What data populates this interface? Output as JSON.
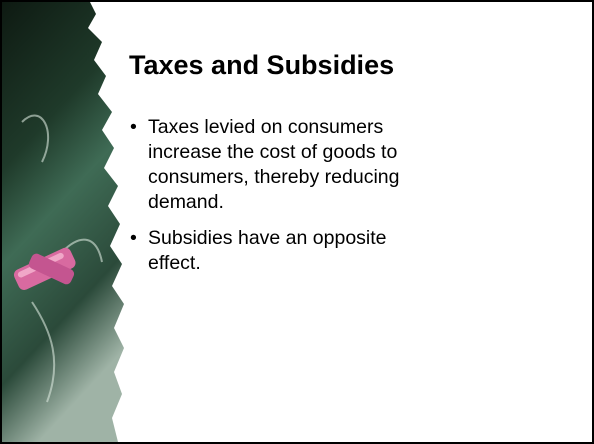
{
  "slide": {
    "title": "Taxes and Subsidies",
    "bullets": [
      "Taxes levied on consumers increase the cost of goods to consumers, thereby reducing demand.",
      "Subsidies have an opposite effect."
    ]
  }
}
